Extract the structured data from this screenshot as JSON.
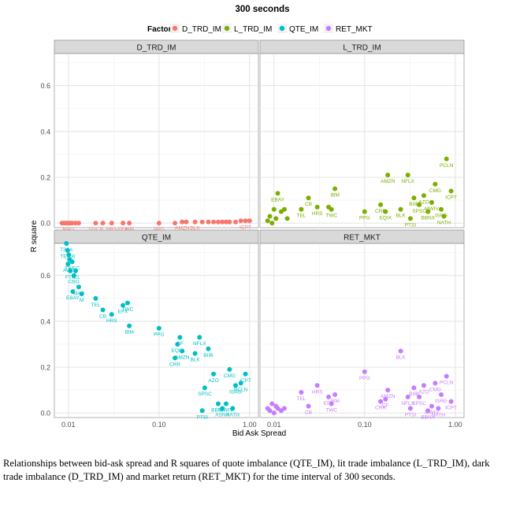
{
  "caption": "Relationships between bid-ask spread and R squares of quote imbalance (QTE_IM), lit trade imbalance (L_TRD_IM), dark trade imbalance (D_TRD_IM) and market return (RET_MKT) for the time interval of 300 seconds.",
  "chart_data": {
    "type": "scatter",
    "title": "300 seconds",
    "xlabel": "Bid Ask Spread",
    "ylabel": "R square",
    "x_scale": "log10",
    "xlim": [
      0.007,
      1.25
    ],
    "ylim": [
      -0.02,
      0.74
    ],
    "x_ticks": [
      0.01,
      0.1,
      1.0
    ],
    "x_tick_labels": [
      "0.01",
      "0.10",
      "1.00"
    ],
    "y_ticks": [
      0.0,
      0.2,
      0.4,
      0.6
    ],
    "y_tick_labels": [
      "0.0",
      "0.2",
      "0.4",
      "0.6"
    ],
    "grid": true,
    "legend": {
      "title": "Factor",
      "position": "top",
      "entries": [
        {
          "name": "D_TRD_IM",
          "color": "#F8766D"
        },
        {
          "name": "L_TRD_IM",
          "color": "#7CAE00"
        },
        {
          "name": "QTE_IM",
          "color": "#00BFC4"
        },
        {
          "name": "RET_MKT",
          "color": "#C77CFF"
        }
      ]
    },
    "panels": [
      {
        "strip": "D_TRD_IM",
        "color": "#F8766D",
        "points": [
          {
            "x": 0.0085,
            "y": 0.0,
            "label": ""
          },
          {
            "x": 0.009,
            "y": 0.0,
            "label": ""
          },
          {
            "x": 0.0095,
            "y": 0.0,
            "label": ""
          },
          {
            "x": 0.01,
            "y": 0.0,
            "label": "MAG"
          },
          {
            "x": 0.0105,
            "y": 0.0,
            "label": ""
          },
          {
            "x": 0.011,
            "y": 0.0,
            "label": ""
          },
          {
            "x": 0.012,
            "y": 0.0,
            "label": ""
          },
          {
            "x": 0.013,
            "y": 0.0,
            "label": ""
          },
          {
            "x": 0.02,
            "y": 0.0,
            "label": "TEICB"
          },
          {
            "x": 0.024,
            "y": 0.0,
            "label": ""
          },
          {
            "x": 0.03,
            "y": 0.0,
            "label": "HRS"
          },
          {
            "x": 0.04,
            "y": 0.0,
            "label": "EFX"
          },
          {
            "x": 0.047,
            "y": 0.0,
            "label": "IBM"
          },
          {
            "x": 0.1,
            "y": 0.0,
            "label": "PPG"
          },
          {
            "x": 0.15,
            "y": 0.0,
            "label": ""
          },
          {
            "x": 0.18,
            "y": 0.005,
            "label": "AMZN"
          },
          {
            "x": 0.2,
            "y": 0.005,
            "label": ""
          },
          {
            "x": 0.25,
            "y": 0.005,
            "label": "BLK"
          },
          {
            "x": 0.3,
            "y": 0.005,
            "label": ""
          },
          {
            "x": 0.35,
            "y": 0.005,
            "label": ""
          },
          {
            "x": 0.4,
            "y": 0.005,
            "label": ""
          },
          {
            "x": 0.45,
            "y": 0.005,
            "label": ""
          },
          {
            "x": 0.5,
            "y": 0.005,
            "label": ""
          },
          {
            "x": 0.55,
            "y": 0.005,
            "label": ""
          },
          {
            "x": 0.6,
            "y": 0.005,
            "label": ""
          },
          {
            "x": 0.7,
            "y": 0.005,
            "label": ""
          },
          {
            "x": 0.8,
            "y": 0.01,
            "label": ""
          },
          {
            "x": 0.9,
            "y": 0.01,
            "label": "ICPT"
          },
          {
            "x": 1.0,
            "y": 0.01,
            "label": ""
          }
        ]
      },
      {
        "strip": "L_TRD_IM",
        "color": "#7CAE00",
        "points": [
          {
            "x": 0.0085,
            "y": 0.01,
            "label": ""
          },
          {
            "x": 0.009,
            "y": 0.03,
            "label": ""
          },
          {
            "x": 0.0095,
            "y": 0.0,
            "label": ""
          },
          {
            "x": 0.01,
            "y": 0.06,
            "label": ""
          },
          {
            "x": 0.0105,
            "y": 0.02,
            "label": ""
          },
          {
            "x": 0.011,
            "y": 0.13,
            "label": "EBAY"
          },
          {
            "x": 0.012,
            "y": 0.05,
            "label": ""
          },
          {
            "x": 0.013,
            "y": 0.06,
            "label": ""
          },
          {
            "x": 0.014,
            "y": 0.02,
            "label": ""
          },
          {
            "x": 0.02,
            "y": 0.06,
            "label": "TEL"
          },
          {
            "x": 0.024,
            "y": 0.11,
            "label": "CB"
          },
          {
            "x": 0.03,
            "y": 0.07,
            "label": "HRS"
          },
          {
            "x": 0.04,
            "y": 0.07,
            "label": ""
          },
          {
            "x": 0.043,
            "y": 0.06,
            "label": "TWC"
          },
          {
            "x": 0.047,
            "y": 0.15,
            "label": "IBM"
          },
          {
            "x": 0.1,
            "y": 0.05,
            "label": "PPG"
          },
          {
            "x": 0.15,
            "y": 0.08,
            "label": "CRR"
          },
          {
            "x": 0.17,
            "y": 0.05,
            "label": "EQIX"
          },
          {
            "x": 0.18,
            "y": 0.21,
            "label": "AMZN"
          },
          {
            "x": 0.25,
            "y": 0.06,
            "label": "BLK"
          },
          {
            "x": 0.3,
            "y": 0.21,
            "label": "NFLX"
          },
          {
            "x": 0.32,
            "y": 0.02,
            "label": "PTSI"
          },
          {
            "x": 0.35,
            "y": 0.11,
            "label": "BIIB"
          },
          {
            "x": 0.4,
            "y": 0.08,
            "label": "SPSC"
          },
          {
            "x": 0.45,
            "y": 0.12,
            "label": "AZO"
          },
          {
            "x": 0.5,
            "y": 0.05,
            "label": "BBNX"
          },
          {
            "x": 0.55,
            "y": 0.09,
            "label": "MWIV"
          },
          {
            "x": 0.6,
            "y": 0.17,
            "label": "CMG"
          },
          {
            "x": 0.7,
            "y": 0.06,
            "label": "ISRG"
          },
          {
            "x": 0.75,
            "y": 0.03,
            "label": "NATH"
          },
          {
            "x": 0.8,
            "y": 0.28,
            "label": "PCLN"
          },
          {
            "x": 0.9,
            "y": 0.14,
            "label": "ICPT"
          }
        ]
      },
      {
        "strip": "QTE_IM",
        "color": "#00BFC4",
        "points": [
          {
            "x": 0.0095,
            "y": 0.74,
            "label": "TSLA"
          },
          {
            "x": 0.0098,
            "y": 0.71,
            "label": "TEICB"
          },
          {
            "x": 0.0099,
            "y": 0.65,
            "label": "AVY"
          },
          {
            "x": 0.0101,
            "y": 0.69,
            "label": ""
          },
          {
            "x": 0.0103,
            "y": 0.67,
            "label": ""
          },
          {
            "x": 0.0105,
            "y": 0.62,
            "label": "FTR"
          },
          {
            "x": 0.011,
            "y": 0.66,
            "label": "TWEC"
          },
          {
            "x": 0.0115,
            "y": 0.6,
            "label": "CBG"
          },
          {
            "x": 0.0112,
            "y": 0.53,
            "label": "EBAY"
          },
          {
            "x": 0.012,
            "y": 0.62,
            "label": "TEL"
          },
          {
            "x": 0.013,
            "y": 0.55,
            "label": "MAR"
          },
          {
            "x": 0.014,
            "y": 0.52,
            "label": "M"
          },
          {
            "x": 0.02,
            "y": 0.5,
            "label": "TEL"
          },
          {
            "x": 0.024,
            "y": 0.45,
            "label": "CB"
          },
          {
            "x": 0.03,
            "y": 0.43,
            "label": "HRS"
          },
          {
            "x": 0.04,
            "y": 0.47,
            "label": "EFX"
          },
          {
            "x": 0.045,
            "y": 0.48,
            "label": "TWC"
          },
          {
            "x": 0.047,
            "y": 0.38,
            "label": "IBM"
          },
          {
            "x": 0.1,
            "y": 0.37,
            "label": "PPG"
          },
          {
            "x": 0.15,
            "y": 0.24,
            "label": "CRR"
          },
          {
            "x": 0.16,
            "y": 0.3,
            "label": "EQIX"
          },
          {
            "x": 0.17,
            "y": 0.33,
            "label": "CF"
          },
          {
            "x": 0.18,
            "y": 0.27,
            "label": "AMZN"
          },
          {
            "x": 0.25,
            "y": 0.26,
            "label": "BLK"
          },
          {
            "x": 0.28,
            "y": 0.33,
            "label": "NFLX"
          },
          {
            "x": 0.3,
            "y": 0.01,
            "label": "PTSI"
          },
          {
            "x": 0.32,
            "y": 0.11,
            "label": "SPSC"
          },
          {
            "x": 0.35,
            "y": 0.28,
            "label": "BIIB"
          },
          {
            "x": 0.4,
            "y": 0.17,
            "label": "AZO"
          },
          {
            "x": 0.45,
            "y": 0.04,
            "label": "BBNX"
          },
          {
            "x": 0.5,
            "y": 0.02,
            "label": "ASNX"
          },
          {
            "x": 0.55,
            "y": 0.04,
            "label": "MWIV"
          },
          {
            "x": 0.6,
            "y": 0.19,
            "label": "CMG"
          },
          {
            "x": 0.65,
            "y": 0.02,
            "label": "NATH"
          },
          {
            "x": 0.7,
            "y": 0.12,
            "label": "ISRG"
          },
          {
            "x": 0.8,
            "y": 0.13,
            "label": "PCLN"
          },
          {
            "x": 0.9,
            "y": 0.17,
            "label": "ICPT"
          }
        ]
      },
      {
        "strip": "RET_MKT",
        "color": "#C77CFF",
        "points": [
          {
            "x": 0.0085,
            "y": 0.02,
            "label": ""
          },
          {
            "x": 0.009,
            "y": 0.01,
            "label": ""
          },
          {
            "x": 0.0095,
            "y": 0.04,
            "label": ""
          },
          {
            "x": 0.01,
            "y": 0.0,
            "label": ""
          },
          {
            "x": 0.0105,
            "y": 0.03,
            "label": ""
          },
          {
            "x": 0.011,
            "y": 0.02,
            "label": ""
          },
          {
            "x": 0.012,
            "y": 0.01,
            "label": ""
          },
          {
            "x": 0.013,
            "y": 0.02,
            "label": ""
          },
          {
            "x": 0.02,
            "y": 0.09,
            "label": "TEL"
          },
          {
            "x": 0.024,
            "y": 0.03,
            "label": "CB"
          },
          {
            "x": 0.03,
            "y": 0.12,
            "label": "HRS"
          },
          {
            "x": 0.04,
            "y": 0.07,
            "label": "EFX"
          },
          {
            "x": 0.043,
            "y": 0.04,
            "label": "TWC"
          },
          {
            "x": 0.047,
            "y": 0.08,
            "label": "IBM"
          },
          {
            "x": 0.1,
            "y": 0.18,
            "label": "PPG"
          },
          {
            "x": 0.15,
            "y": 0.05,
            "label": "CRR"
          },
          {
            "x": 0.17,
            "y": 0.06,
            "label": "CF"
          },
          {
            "x": 0.18,
            "y": 0.1,
            "label": "AMZN"
          },
          {
            "x": 0.25,
            "y": 0.27,
            "label": "BLK"
          },
          {
            "x": 0.3,
            "y": 0.07,
            "label": "NFLX"
          },
          {
            "x": 0.32,
            "y": 0.02,
            "label": "PTSI"
          },
          {
            "x": 0.35,
            "y": 0.11,
            "label": "BIIB"
          },
          {
            "x": 0.4,
            "y": 0.07,
            "label": "SPSC"
          },
          {
            "x": 0.45,
            "y": 0.12,
            "label": "AZO"
          },
          {
            "x": 0.5,
            "y": 0.01,
            "label": "BBNX"
          },
          {
            "x": 0.55,
            "y": 0.03,
            "label": "MWIV"
          },
          {
            "x": 0.6,
            "y": 0.13,
            "label": "CMG"
          },
          {
            "x": 0.65,
            "y": 0.02,
            "label": "NATH"
          },
          {
            "x": 0.7,
            "y": 0.08,
            "label": "ISRG"
          },
          {
            "x": 0.8,
            "y": 0.16,
            "label": "PCLN"
          },
          {
            "x": 0.9,
            "y": 0.05,
            "label": "ICPT"
          }
        ]
      }
    ]
  }
}
